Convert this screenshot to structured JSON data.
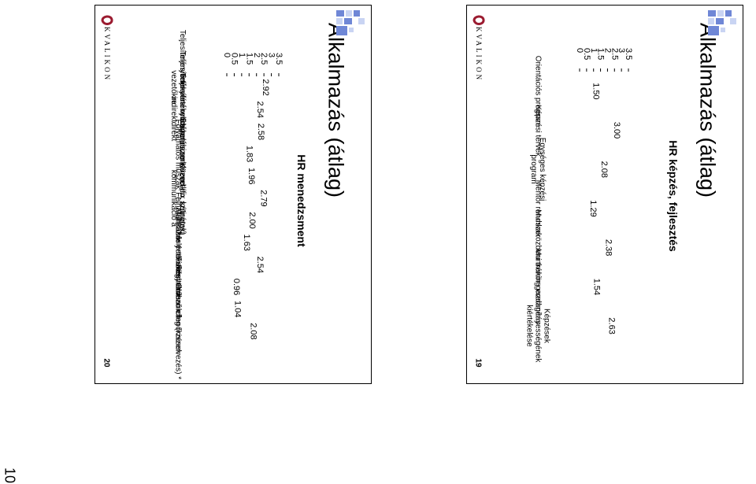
{
  "page_number": "10",
  "slides": [
    {
      "id": "left",
      "title": "Alkalmazás (átlag)",
      "subtitle": "HR menedzsment",
      "page_num": "20",
      "logo_text": "KVALIKON",
      "chart_data": {
        "type": "bar",
        "orientation": "horizontal",
        "categories": [
          "Teljesítményértékelési rendszer - vezetőkre",
          "Teljesítményértékelési rendszer – indirekt",
          "Teljesítményértékelési rendszer – direkt",
          "Folyamatos műszak",
          "Szigorú munkarend (fix szünetek) *",
          "Közvetlen, kétirányú kommunikáció a",
          "Felhatalmazás *",
          "Munkakör értékelés",
          "Helyettesítési terv",
          "Fizetett időbank *",
          "Fegyelmező ellenőrzések",
          "Outsourcing (kiszervezés) *"
        ],
        "values": [
          2.92,
          2.54,
          2.58,
          1.83,
          1.96,
          2.79,
          2.0,
          1.63,
          2.54,
          0.96,
          1.04,
          2.08
        ],
        "value_labels": [
          "2.92",
          "2.54",
          "2.58",
          "1.83",
          "1.96",
          "2.79",
          "2.00",
          "1.63",
          "2.54",
          "0.96",
          "1.04",
          "2.08"
        ],
        "xlim": [
          0,
          3.5
        ],
        "ticks": [
          "0",
          "0.5",
          "1",
          "1.5",
          "2",
          "2.5",
          "3",
          "3.5"
        ],
        "grid": false
      }
    },
    {
      "id": "right",
      "title": "Alkalmazás (átlag)",
      "subtitle": "HR képzés, fejlesztés",
      "page_num": "19",
      "logo_text": "KVALIKON",
      "chart_data": {
        "type": "bar",
        "orientation": "horizontal",
        "categories": [
          "Orientációs program",
          "Képzési tervek",
          "Egységes képzési program",
          "Mentor rendszer",
          "Munkaközbeni tréning",
          "Munkakör-gazdagítás",
          "Képzések eredményességének kiértékelése"
        ],
        "values": [
          1.5,
          3.0,
          2.08,
          1.29,
          2.38,
          1.54,
          2.63
        ],
        "value_labels": [
          "1.50",
          "3.00",
          "2.08",
          "1.29",
          "2.38",
          "1.54",
          "2.63"
        ],
        "xlim": [
          0,
          3.5
        ],
        "ticks": [
          "0",
          "0.5",
          "1",
          "1.5",
          "2",
          "2.5",
          "3",
          "3.5"
        ],
        "grid": false
      }
    }
  ],
  "colors": {
    "bar_fill": "#8080ff",
    "plot_bg": "#ffffff",
    "logo_red": "#9b1b30",
    "pattern_blue": "#6f87d6",
    "pattern_light": "#c9d4f3"
  }
}
